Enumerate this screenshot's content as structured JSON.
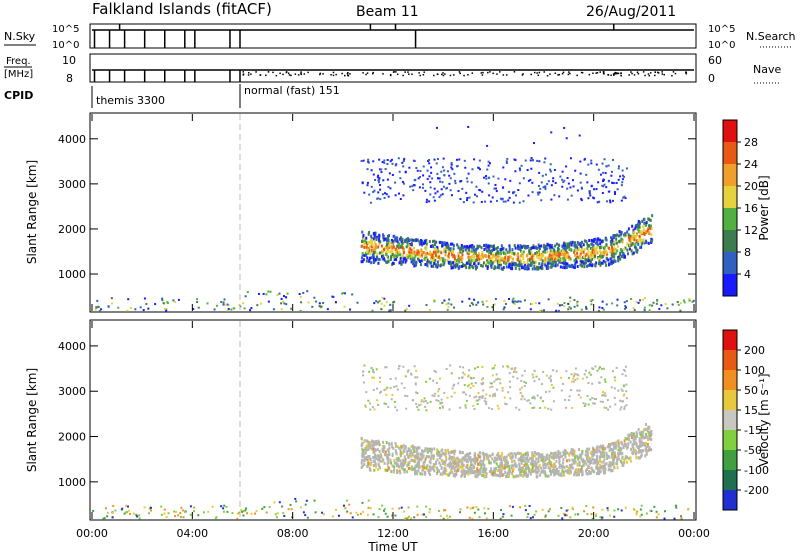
{
  "header": {
    "title": "Falkland Islands (fitACF)",
    "beam": "Beam 11",
    "date": "26/Aug/2011"
  },
  "strips": {
    "nsky_label": "N.Sky",
    "nsky_ticks": [
      "10^5",
      "10^0"
    ],
    "nsearch_label": "N.Search",
    "freq_label_1": "Freq.",
    "freq_label_2": "[MHz]",
    "freq_ticks": [
      "10",
      "8"
    ],
    "nave_label": "Nave",
    "nave_ticks": [
      "60",
      "0"
    ],
    "cpid_label": "CPID",
    "cpid_modes": [
      "themis 3300",
      "normal (fast) 151"
    ]
  },
  "chart_data": [
    {
      "type": "heatmap",
      "title": "",
      "xlabel": "Time UT",
      "ylabel": "Slant Range [km]",
      "x_ticks": [
        "00:00",
        "04:00",
        "08:00",
        "12:00",
        "16:00",
        "20:00",
        "00:00"
      ],
      "xlim_hours": [
        0,
        24
      ],
      "y_ticks": [
        1000,
        2000,
        3000,
        4000
      ],
      "ylim": [
        180,
        4550
      ],
      "colorbar": {
        "label": "Power [dB]",
        "ticks": [
          "4",
          "8",
          "12",
          "16",
          "20",
          "24",
          "28"
        ],
        "colors": [
          "#1a1aff",
          "#3060c0",
          "#3c7c50",
          "#50b040",
          "#e6d23c",
          "#f0a02a",
          "#e85a14",
          "#e01010"
        ]
      },
      "echo_region": {
        "start_hour": 10.7,
        "end_hour": 22.3,
        "band_range_km": [
          1200,
          2100
        ],
        "upper_range_km": [
          2600,
          3600
        ]
      }
    },
    {
      "type": "heatmap",
      "title": "",
      "xlabel": "Time UT",
      "ylabel": "Slant Range [km]",
      "x_ticks": [
        "00:00",
        "04:00",
        "08:00",
        "12:00",
        "16:00",
        "20:00",
        "00:00"
      ],
      "xlim_hours": [
        0,
        24
      ],
      "y_ticks": [
        1000,
        2000,
        3000,
        4000
      ],
      "ylim": [
        180,
        4550
      ],
      "colorbar": {
        "label": "Velocity [m s⁻¹]",
        "ticks": [
          "200",
          "100",
          "50",
          "15",
          "-15",
          "-50",
          "-100",
          "-200"
        ],
        "colors": [
          "#2030d0",
          "#207050",
          "#40a040",
          "#80d040",
          "#c8c8c0",
          "#e8c83c",
          "#f09020",
          "#e85a14",
          "#e01010"
        ]
      },
      "ground_scatter_color": "#b4b4b0"
    }
  ]
}
